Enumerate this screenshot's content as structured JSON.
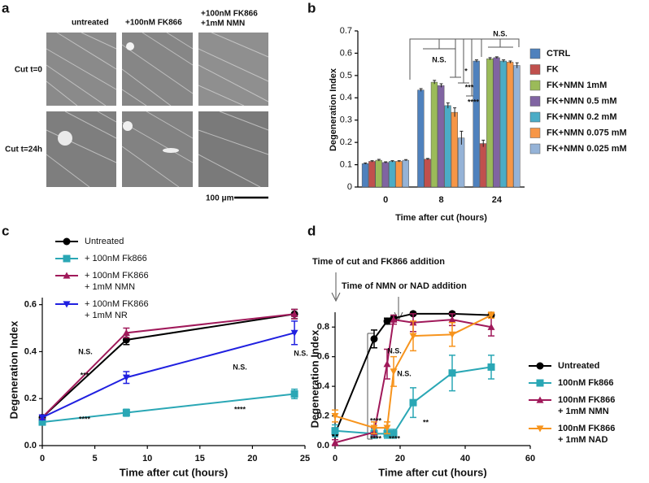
{
  "panel_labels": [
    "a",
    "b",
    "c",
    "d"
  ],
  "images": {
    "columns": [
      [
        "untreated"
      ],
      [
        "+100nM FK866"
      ],
      [
        "+100nM FK866",
        "+1mM NMN"
      ]
    ],
    "rows": [
      "Cut t=0",
      "Cut t=24h"
    ],
    "scale_bar": "100 μm"
  },
  "chart_data": [
    {
      "type": "bar",
      "x_label": "Time after cut (hours)",
      "y_label": "Degeneration Index",
      "categories": [
        "0",
        "8",
        "24"
      ],
      "ylim": [
        0,
        0.7
      ],
      "yticks": [
        0,
        0.1,
        0.2,
        0.3,
        0.4,
        0.5,
        0.6,
        0.7
      ],
      "series": [
        {
          "name": "CTRL",
          "color": "#4f81bd",
          "values": [
            0.105,
            0.435,
            0.565
          ],
          "errors": [
            0.003,
            0.006,
            0.005
          ]
        },
        {
          "name": "FK",
          "color": "#c0504d",
          "values": [
            0.115,
            0.125,
            0.195
          ],
          "errors": [
            0.003,
            0.003,
            0.015
          ]
        },
        {
          "name": "FK+NMN 1mM",
          "color": "#9bbb59",
          "values": [
            0.12,
            0.47,
            0.575
          ],
          "errors": [
            0.004,
            0.008,
            0.005
          ]
        },
        {
          "name": "FK+NMN 0.5 mM",
          "color": "#8064a2",
          "values": [
            0.11,
            0.455,
            0.58
          ],
          "errors": [
            0.003,
            0.008,
            0.004
          ]
        },
        {
          "name": "FK+NMN 0.2 mM",
          "color": "#4bacc6",
          "values": [
            0.115,
            0.365,
            0.565
          ],
          "errors": [
            0.003,
            0.012,
            0.005
          ]
        },
        {
          "name": "FK+NMN 0.075 mM",
          "color": "#f79646",
          "values": [
            0.115,
            0.335,
            0.56
          ],
          "errors": [
            0.003,
            0.02,
            0.005
          ]
        },
        {
          "name": "FK+NMN 0.025 mM",
          "color": "#95b3d7",
          "values": [
            0.12,
            0.22,
            0.545
          ],
          "errors": [
            0.003,
            0.03,
            0.012
          ]
        }
      ],
      "annotations": [
        "N.S.",
        "*",
        "***",
        "****",
        "N.S."
      ]
    },
    {
      "type": "line",
      "x_label": "Time after cut (hours)",
      "y_label": "Degeneration Index",
      "x": [
        0,
        8,
        24
      ],
      "xlim": [
        0,
        25
      ],
      "xticks": [
        0,
        5,
        10,
        15,
        20,
        25
      ],
      "ylim": [
        0,
        0.63
      ],
      "yticks": [
        {
          "value": 0,
          "label": "0.0"
        },
        0.2,
        0.4,
        0.6
      ],
      "series": [
        {
          "name": [
            "Untreated"
          ],
          "color": "#000000",
          "marker": "circle",
          "values": [
            0.12,
            0.45,
            0.56
          ],
          "errors": [
            0.01,
            0.02,
            0.02
          ]
        },
        {
          "name": [
            "+ 100nM Fk866"
          ],
          "color": "#2aa7b5",
          "marker": "square",
          "values": [
            0.1,
            0.14,
            0.22
          ],
          "errors": [
            0.01,
            0.015,
            0.02
          ]
        },
        {
          "name": [
            "+ 100nM FK866",
            "+ 1mM NMN"
          ],
          "color": "#a0195a",
          "marker": "triangle",
          "values": [
            0.12,
            0.48,
            0.56
          ],
          "errors": [
            0.01,
            0.02,
            0.02
          ]
        },
        {
          "name": [
            "+ 100nM FK866",
            "+ 1mM NR"
          ],
          "color": "#2020e0",
          "marker": "down",
          "values": [
            0.12,
            0.29,
            0.48
          ],
          "errors": [
            0.01,
            0.025,
            0.05
          ]
        }
      ],
      "annotations": [
        "N.S.",
        "***",
        "****",
        "N.S.",
        "N.S.",
        "****"
      ]
    },
    {
      "type": "line",
      "x_label": "Time after cut (hours)",
      "y_label": "Degeneration Index",
      "x": [
        0,
        12,
        16,
        18,
        24,
        36,
        48
      ],
      "xlim": [
        0,
        60
      ],
      "xticks": [
        0,
        20,
        40,
        60
      ],
      "ylim": [
        0,
        0.9
      ],
      "yticks": [
        {
          "value": 0,
          "label": "0.0"
        },
        0.2,
        0.4,
        0.6,
        0.8
      ],
      "series": [
        {
          "name": [
            "Untreated"
          ],
          "color": "#000000",
          "marker": "circle",
          "values": [
            0.08,
            0.72,
            0.84,
            0.86,
            0.89,
            0.89,
            0.88
          ],
          "errors": [
            0.04,
            0.06,
            0.02,
            0.02,
            0.01,
            0.01,
            0.01
          ]
        },
        {
          "name": [
            "100nM Fk866"
          ],
          "color": "#2aa7b5",
          "marker": "square",
          "values": [
            0.1,
            0.08,
            0.08,
            0.08,
            0.29,
            0.49,
            0.53
          ],
          "errors": [
            0.04,
            0.03,
            0.03,
            0.03,
            0.1,
            0.12,
            0.08
          ]
        },
        {
          "name": [
            "100nM FK866",
            "+ 1mM NMN"
          ],
          "color": "#a0195a",
          "marker": "triangle",
          "values": [
            0.02,
            0.09,
            0.55,
            0.85,
            0.83,
            0.85,
            0.8
          ],
          "errors": [
            0.02,
            0.03,
            0.1,
            0.03,
            0.06,
            0.04,
            0.06
          ]
        },
        {
          "name": [
            "100nM FK866",
            "+ 1mM NAD"
          ],
          "color": "#f7941d",
          "marker": "down",
          "values": [
            0.2,
            0.12,
            0.12,
            0.5,
            0.74,
            0.75,
            0.88
          ],
          "errors": [
            0.04,
            0.04,
            0.04,
            0.1,
            0.1,
            0.08,
            0.02
          ]
        }
      ],
      "annotations": [
        "Time of cut and FK866 addition",
        "Time of NMN or NAD addition",
        "N.S.",
        "N.S.",
        "****",
        "****",
        "****",
        "**"
      ]
    }
  ]
}
